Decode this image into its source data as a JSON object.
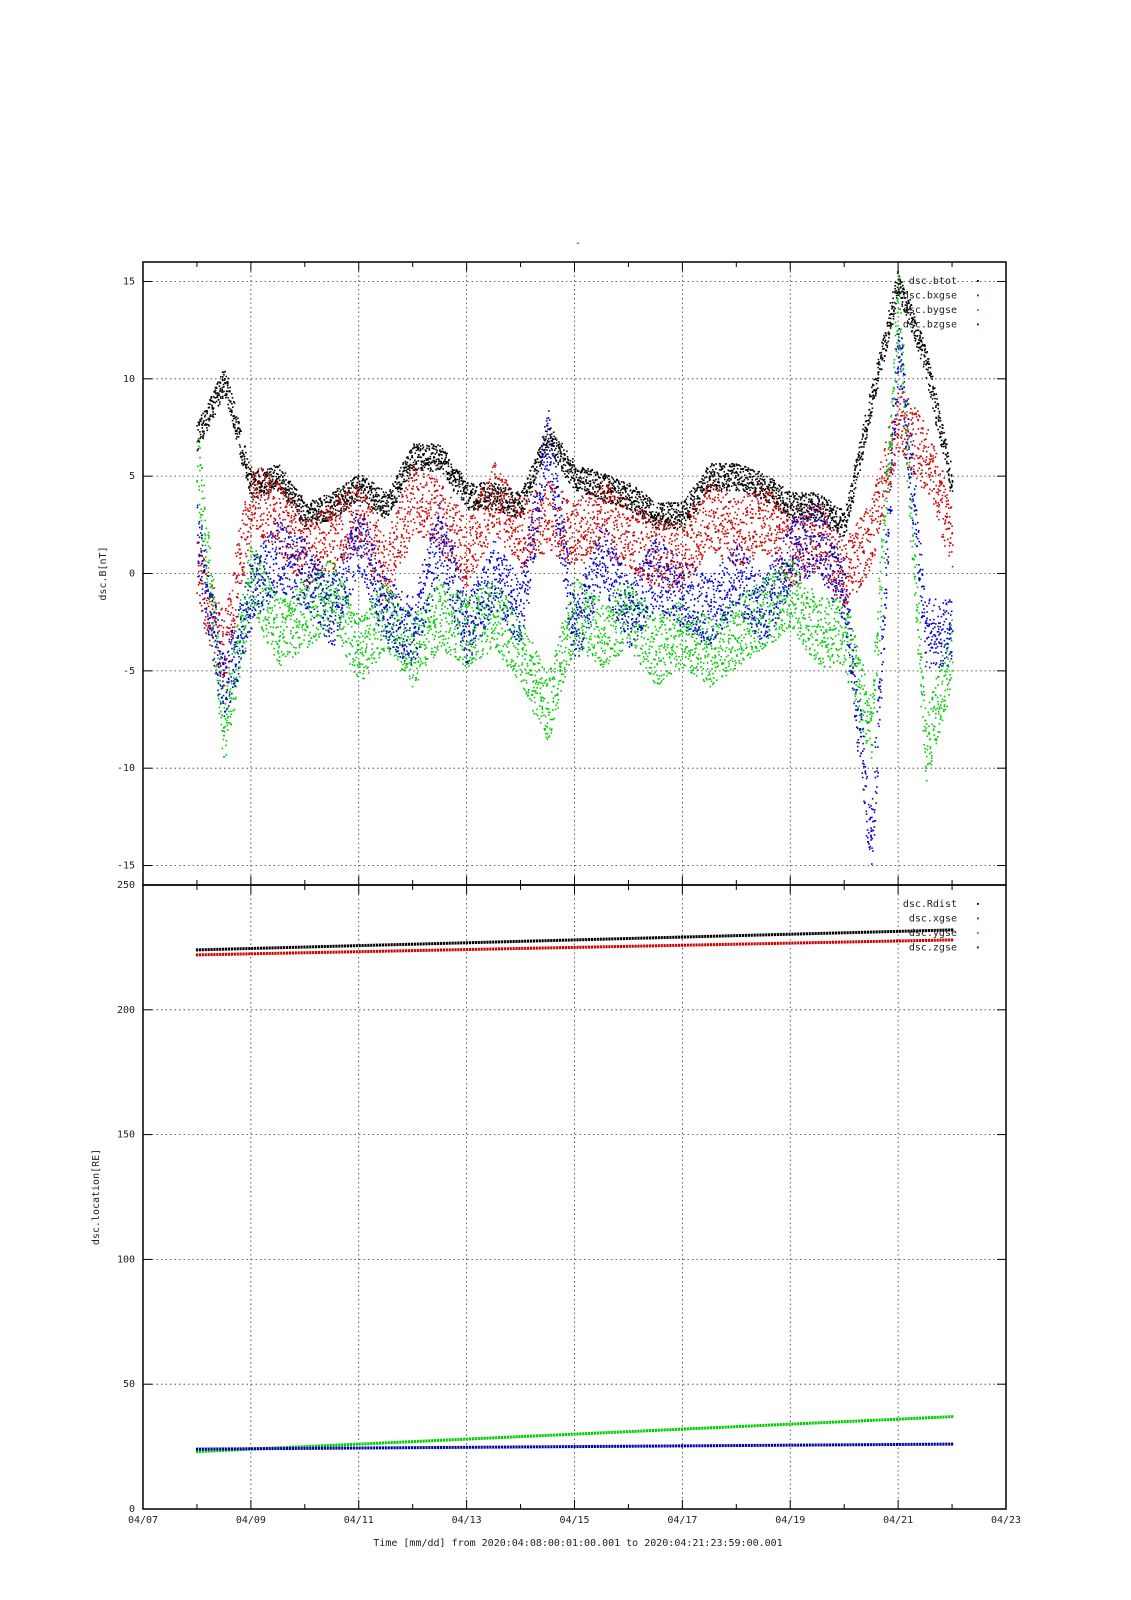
{
  "page_title": "-",
  "x_axis_label": "Time [mm/dd]  from 2020:04:08:00:01:00.001  to  2020:04:21:23:59:00.001",
  "x_ticks": [
    "04/07",
    "04/09",
    "04/11",
    "04/13",
    "04/15",
    "04/17",
    "04/19",
    "04/21",
    "04/23"
  ],
  "chart_data": [
    {
      "type": "scatter",
      "ylabel": "dsc.B[nT]",
      "xlim": [
        "2020-04-07",
        "2020-04-23"
      ],
      "ylim": [
        -16,
        16
      ],
      "y_ticks": [
        15,
        10,
        5,
        0,
        -5,
        -10,
        -15
      ],
      "grid": true,
      "legend_position": "top-right",
      "series": [
        {
          "name": "dsc.btot",
          "color": "#000000",
          "x": [
            "04/08 00:00",
            "04/08 12:00",
            "04/09 00:00",
            "04/09 12:00",
            "04/10 00:00",
            "04/10 12:00",
            "04/11 00:00",
            "04/11 12:00",
            "04/12 00:00",
            "04/12 12:00",
            "04/13 00:00",
            "04/13 12:00",
            "04/14 00:00",
            "04/14 12:00",
            "04/15 00:00",
            "04/15 12:00",
            "04/16 00:00",
            "04/16 12:00",
            "04/17 00:00",
            "04/17 12:00",
            "04/18 00:00",
            "04/18 12:00",
            "04/19 00:00",
            "04/19 12:00",
            "04/20 00:00",
            "04/20 12:00",
            "04/21 00:00",
            "04/21 12:00",
            "04/21 23:59"
          ],
          "values": [
            7,
            10,
            4.5,
            5,
            3,
            3.5,
            4.5,
            3.5,
            6,
            6,
            4,
            4,
            3.5,
            7,
            5,
            4.5,
            4,
            3,
            3,
            5,
            5,
            4.5,
            3.5,
            3.5,
            2.5,
            9,
            15,
            11,
            4.5
          ]
        },
        {
          "name": "dsc.bxgse",
          "color": "#cc0000",
          "x": [
            "04/08 00:00",
            "04/08 12:00",
            "04/09 00:00",
            "04/09 12:00",
            "04/10 00:00",
            "04/10 12:00",
            "04/11 00:00",
            "04/11 12:00",
            "04/12 00:00",
            "04/12 12:00",
            "04/13 00:00",
            "04/13 12:00",
            "04/14 00:00",
            "04/14 12:00",
            "04/15 00:00",
            "04/15 12:00",
            "04/16 00:00",
            "04/16 12:00",
            "04/17 00:00",
            "04/17 12:00",
            "04/18 00:00",
            "04/18 12:00",
            "04/19 00:00",
            "04/19 12:00",
            "04/20 00:00",
            "04/20 12:00",
            "04/21 00:00",
            "04/21 12:00",
            "04/21 23:59"
          ],
          "values": [
            0,
            -4,
            4,
            3,
            1,
            2,
            3,
            0,
            4,
            3,
            1,
            4,
            2,
            3,
            2,
            3,
            2,
            1,
            1,
            3,
            2,
            3,
            1,
            2,
            0,
            2,
            8,
            6,
            2
          ]
        },
        {
          "name": "dsc.bygse",
          "color": "#00cc00",
          "x": [
            "04/08 00:00",
            "04/08 12:00",
            "04/09 00:00",
            "04/09 12:00",
            "04/10 00:00",
            "04/10 12:00",
            "04/11 00:00",
            "04/11 12:00",
            "04/12 00:00",
            "04/12 12:00",
            "04/13 00:00",
            "04/13 12:00",
            "04/14 00:00",
            "04/14 12:00",
            "04/15 00:00",
            "04/15 12:00",
            "04/16 00:00",
            "04/16 12:00",
            "04/17 00:00",
            "04/17 12:00",
            "04/18 00:00",
            "04/18 12:00",
            "04/19 00:00",
            "04/19 12:00",
            "04/20 00:00",
            "04/20 12:00",
            "04/21 00:00",
            "04/21 12:00",
            "04/21 23:59"
          ],
          "values": [
            6,
            -8,
            0,
            -3,
            -2,
            -1,
            -4,
            -2,
            -4,
            -2,
            -3,
            -2,
            -4,
            -7,
            -2,
            -3,
            -2,
            -4,
            -3,
            -4,
            -3,
            -2,
            -1,
            -3,
            -3,
            -8,
            14,
            -9,
            -4
          ]
        },
        {
          "name": "dsc.bzgse",
          "color": "#0000cc",
          "x": [
            "04/08 00:00",
            "04/08 12:00",
            "04/09 00:00",
            "04/09 12:00",
            "04/10 00:00",
            "04/10 12:00",
            "04/11 00:00",
            "04/11 12:00",
            "04/12 00:00",
            "04/12 12:00",
            "04/13 00:00",
            "04/13 12:00",
            "04/14 00:00",
            "04/14 12:00",
            "04/15 00:00",
            "04/15 12:00",
            "04/16 00:00",
            "04/16 12:00",
            "04/17 00:00",
            "04/17 12:00",
            "04/18 00:00",
            "04/18 12:00",
            "04/19 00:00",
            "04/19 12:00",
            "04/20 00:00",
            "04/20 12:00",
            "04/21 00:00",
            "04/21 12:00",
            "04/21 23:59"
          ],
          "values": [
            2,
            -6,
            -1,
            1,
            0,
            -2,
            2,
            -2,
            -3,
            2,
            -3,
            0,
            -2,
            7,
            -3,
            1,
            -2,
            0,
            -1,
            -2,
            0,
            -2,
            1,
            2,
            -1,
            -14,
            12,
            -3,
            -3
          ]
        }
      ]
    },
    {
      "type": "scatter",
      "ylabel": "dsc.location[RE]",
      "xlim": [
        "2020-04-07",
        "2020-04-23"
      ],
      "ylim": [
        0,
        250
      ],
      "y_ticks": [
        250,
        200,
        150,
        100,
        50,
        0
      ],
      "grid": true,
      "legend_position": "top-right",
      "series": [
        {
          "name": "dsc.Rdist",
          "color": "#000000",
          "x": [
            "04/08 00:00",
            "04/21 23:59"
          ],
          "values": [
            224,
            232
          ]
        },
        {
          "name": "dsc.xgse",
          "color": "#cc0000",
          "x": [
            "04/08 00:00",
            "04/21 23:59"
          ],
          "values": [
            222,
            228
          ]
        },
        {
          "name": "dsc.ygse",
          "color": "#00cc00",
          "x": [
            "04/08 00:00",
            "04/21 23:59"
          ],
          "values": [
            23,
            37
          ]
        },
        {
          "name": "dsc.zgse",
          "color": "#0000aa",
          "x": [
            "04/08 00:00",
            "04/21 23:59"
          ],
          "values": [
            24,
            26
          ]
        }
      ]
    }
  ]
}
